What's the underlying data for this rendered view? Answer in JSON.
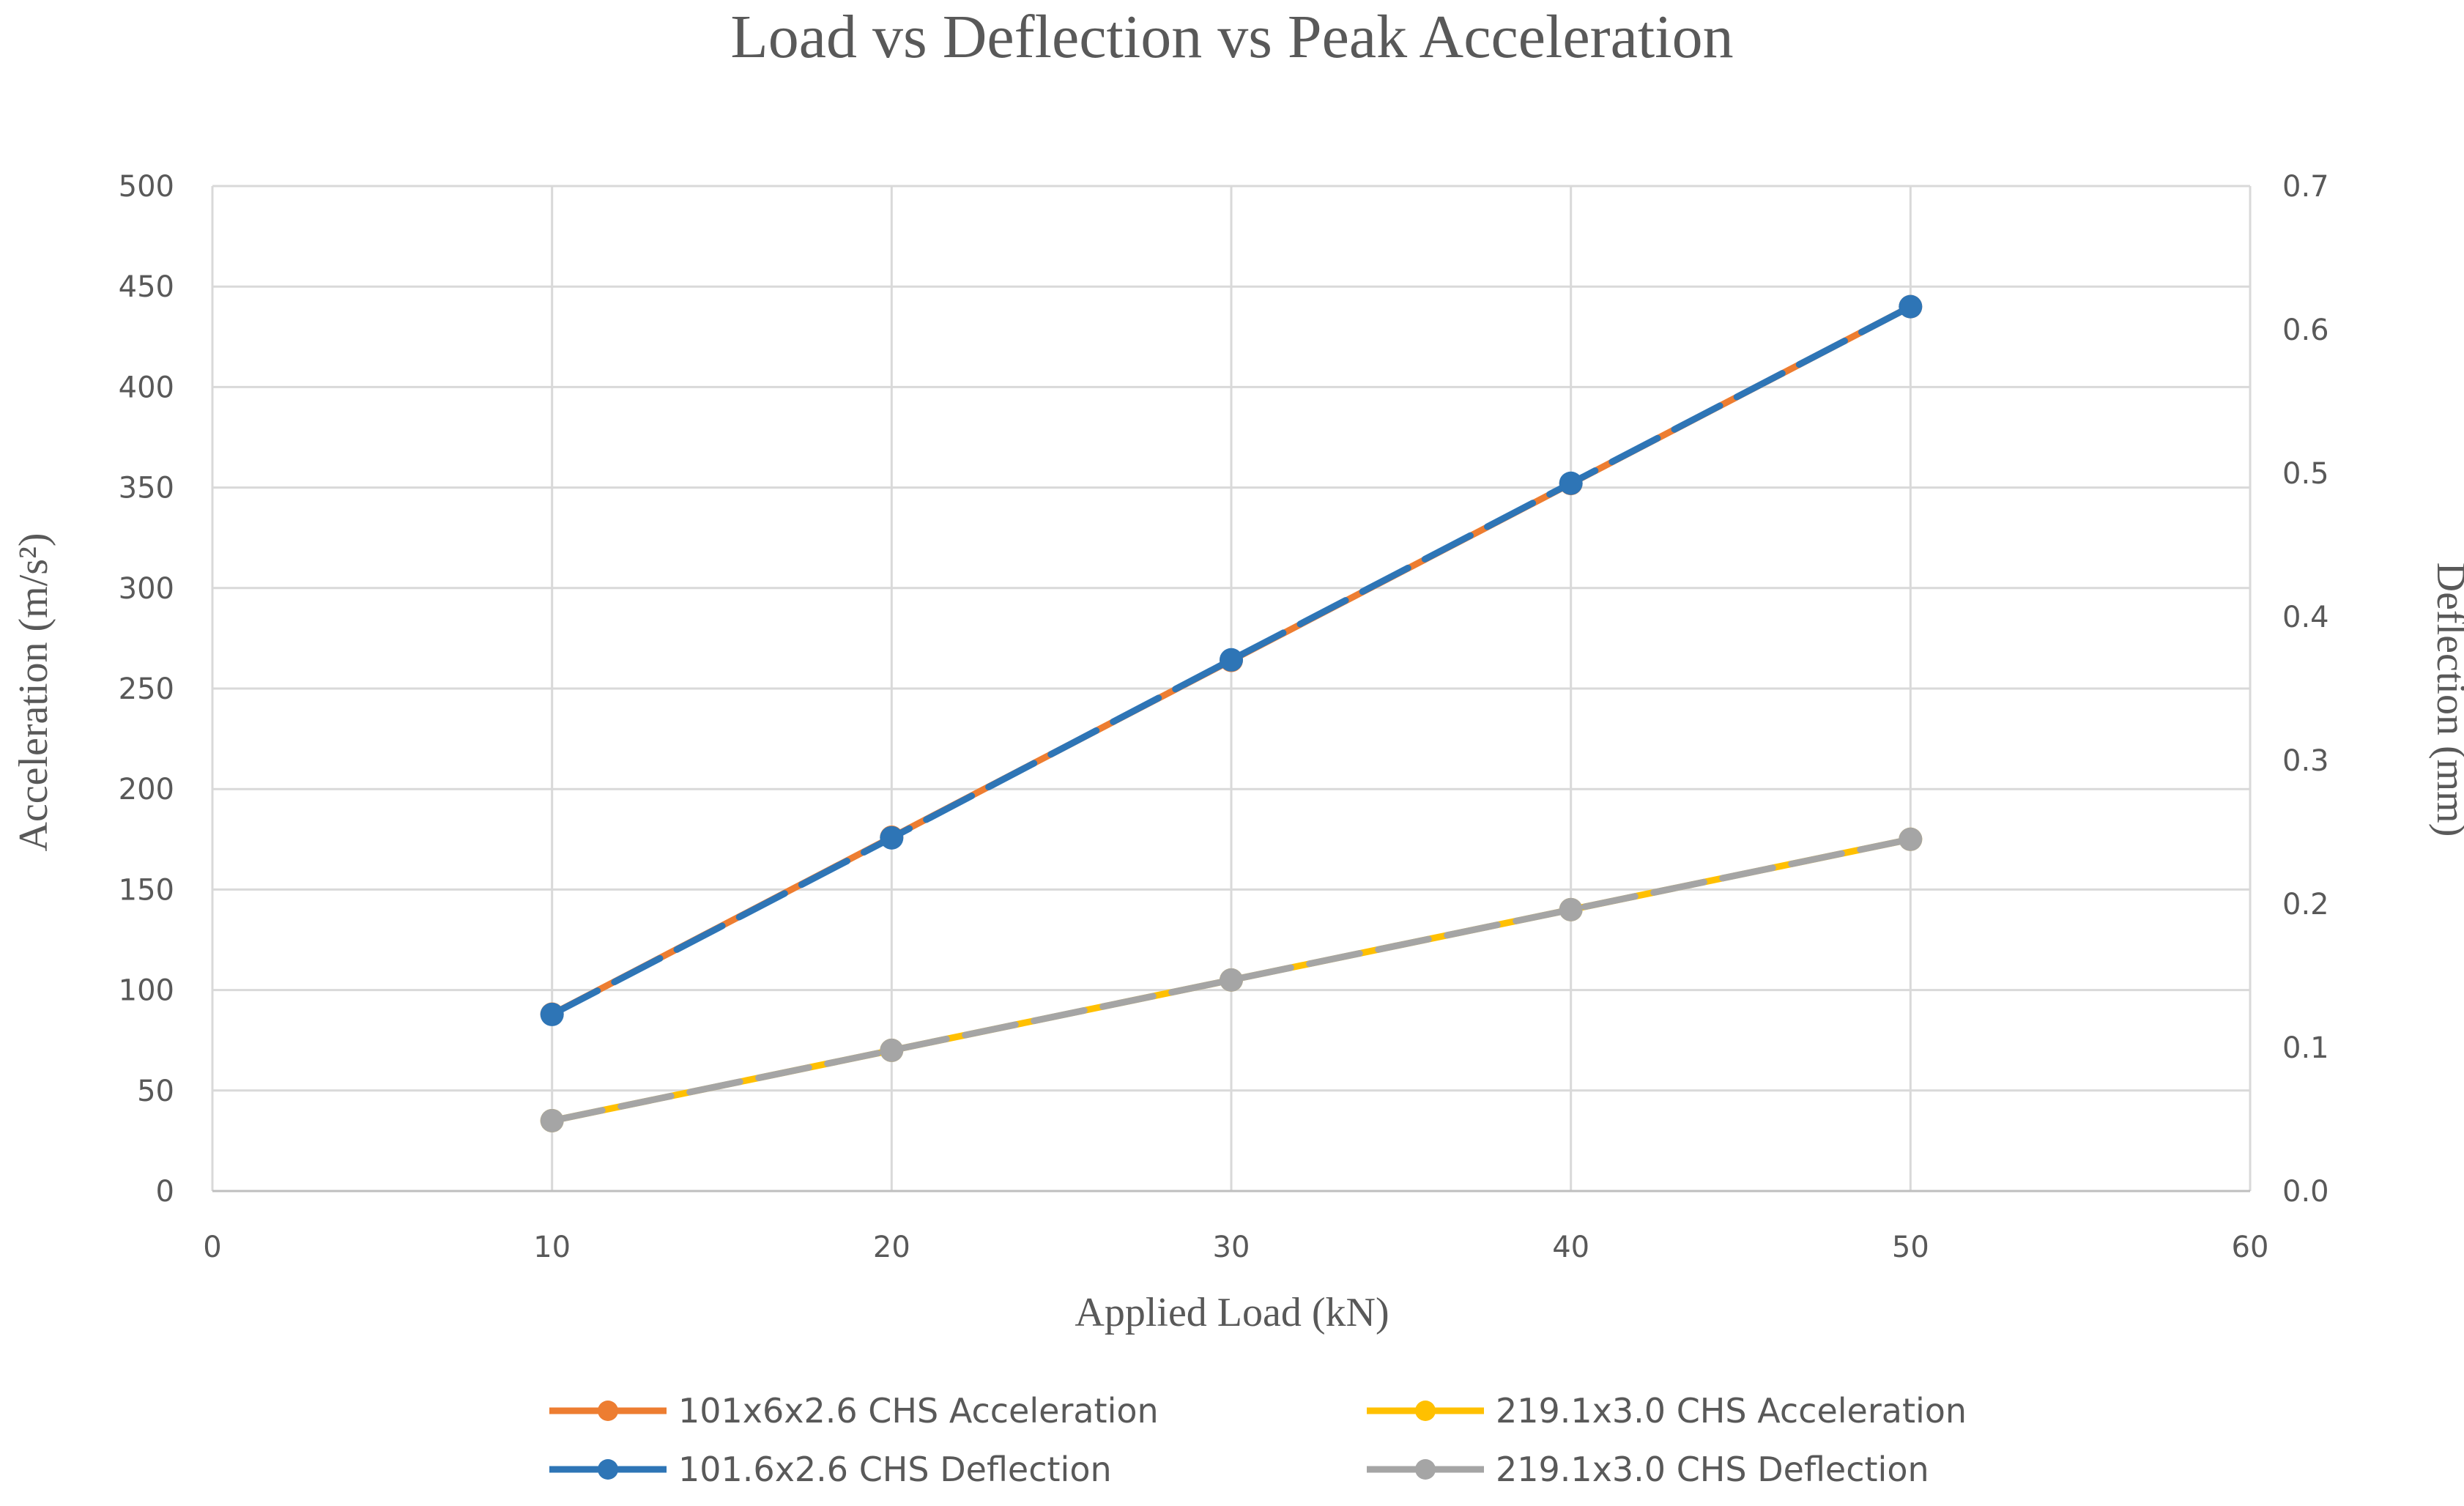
{
  "chart_data": {
    "type": "line",
    "title": "Load vs Deflection vs Peak Acceleration",
    "xlabel": "Applied Load (kN)",
    "ylabel": "Acceleration (m/s²)",
    "y2label": "Deflection (mm)",
    "xlim": [
      0,
      60
    ],
    "ylim": [
      0,
      500
    ],
    "y2lim": [
      0,
      0.7
    ],
    "x_ticks": [
      "0",
      "10",
      "20",
      "30",
      "40",
      "50",
      "60"
    ],
    "y_ticks": [
      "0",
      "50",
      "100",
      "150",
      "200",
      "250",
      "300",
      "350",
      "400",
      "450",
      "500"
    ],
    "y2_ticks": [
      "0.0",
      "0.1",
      "0.2",
      "0.3",
      "0.4",
      "0.5",
      "0.6",
      "0.7"
    ],
    "grid": true,
    "legend_position": "bottom",
    "x": [
      10,
      20,
      30,
      40,
      50
    ],
    "series": [
      {
        "name": "101x6x2.6 CHS Acceleration",
        "axis": "left",
        "values": [
          88,
          176,
          264,
          352,
          440
        ],
        "color": "#ED7D31",
        "dash": false
      },
      {
        "name": "219.1x3.0 CHS Acceleration",
        "axis": "left",
        "values": [
          35,
          70,
          105,
          140,
          175
        ],
        "color": "#FFC000",
        "dash": false
      },
      {
        "name": "101.6x2.6 CHS Deflection",
        "axis": "right",
        "values": [
          0.123,
          0.246,
          0.37,
          0.493,
          0.616
        ],
        "color": "#2E75B6",
        "dash": true
      },
      {
        "name": "219.1x3.0 CHS Deflection",
        "axis": "right",
        "values": [
          0.049,
          0.098,
          0.147,
          0.196,
          0.245
        ],
        "color": "#A5A5A5",
        "dash": true
      }
    ]
  }
}
